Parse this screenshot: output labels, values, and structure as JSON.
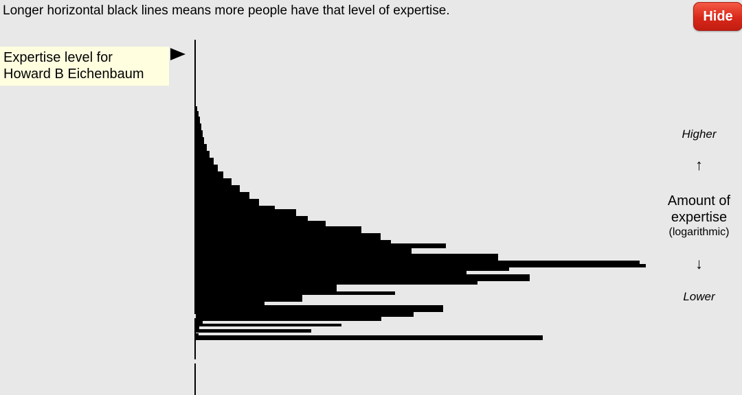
{
  "header": {
    "text": "Longer horizontal black lines means more people have that level of expertise."
  },
  "hide_button": {
    "label": "Hide"
  },
  "marker": {
    "line1": "Expertise level for",
    "line2": "Howard B Eichenbaum"
  },
  "scale": {
    "higher": "Higher",
    "up_arrow": "↑",
    "amount_line1": "Amount of",
    "amount_line2": "expertise",
    "log_note": "(logarithmic)",
    "down_arrow": "↓",
    "lower": "Lower"
  },
  "chart_data": {
    "type": "bar",
    "orientation": "horizontal",
    "bars": [
      [
        155,
        162,
        2
      ],
      [
        162,
        170,
        4
      ],
      [
        170,
        180,
        6
      ],
      [
        180,
        190,
        8
      ],
      [
        190,
        200,
        10
      ],
      [
        200,
        210,
        12
      ],
      [
        210,
        220,
        16
      ],
      [
        220,
        230,
        20
      ],
      [
        230,
        240,
        26
      ],
      [
        240,
        250,
        32
      ],
      [
        250,
        260,
        40
      ],
      [
        260,
        270,
        52
      ],
      [
        270,
        280,
        64
      ],
      [
        280,
        290,
        78
      ],
      [
        290,
        300,
        92
      ],
      [
        300,
        305,
        115
      ],
      [
        305,
        315,
        146
      ],
      [
        315,
        322,
        163
      ],
      [
        322,
        330,
        189
      ],
      [
        330,
        340,
        241
      ],
      [
        340,
        350,
        269
      ],
      [
        350,
        355,
        284
      ],
      [
        355,
        362,
        364
      ],
      [
        362,
        370,
        314
      ],
      [
        370,
        380,
        440
      ],
      [
        380,
        385,
        646
      ],
      [
        385,
        390,
        655
      ],
      [
        390,
        395,
        456
      ],
      [
        395,
        400,
        394
      ],
      [
        400,
        410,
        486
      ],
      [
        410,
        415,
        410
      ],
      [
        415,
        425,
        205
      ],
      [
        425,
        430,
        290
      ],
      [
        430,
        440,
        155
      ],
      [
        440,
        445,
        100
      ],
      [
        445,
        455,
        360
      ],
      [
        455,
        462,
        317
      ],
      [
        462,
        468,
        270
      ],
      [
        468,
        472,
        10
      ],
      [
        472,
        476,
        212
      ],
      [
        476,
        480,
        5
      ],
      [
        480,
        485,
        168
      ],
      [
        486,
        489,
        4
      ],
      [
        489,
        496,
        505
      ]
    ]
  }
}
